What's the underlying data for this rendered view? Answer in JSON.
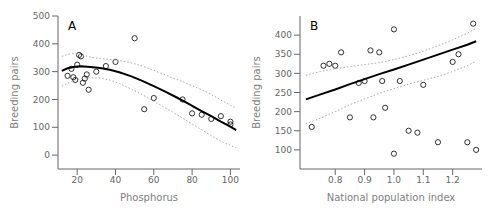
{
  "chart_data": [
    {
      "type": "scatter",
      "annotations": [
        "A"
      ],
      "xlabel": "Phosphorus",
      "ylabel": "Breeding pairs",
      "grid": false,
      "xlim": [
        10,
        105
      ],
      "ylim": [
        -50,
        500
      ],
      "xticks": [
        20,
        40,
        60,
        80,
        100
      ],
      "yticks": [
        0,
        100,
        200,
        300,
        400,
        500
      ],
      "series": [
        {
          "type": "scatter",
          "marker": "open_circle",
          "color": "#000000",
          "x": [
            15,
            17,
            18,
            19,
            20,
            21,
            22,
            23,
            24,
            25,
            26,
            30,
            35,
            40,
            50,
            55,
            60,
            75,
            80,
            85,
            90,
            95,
            100,
            100
          ],
          "values": [
            285,
            310,
            280,
            270,
            325,
            360,
            355,
            260,
            275,
            290,
            235,
            300,
            320,
            335,
            420,
            165,
            205,
            200,
            150,
            145,
            130,
            140,
            110,
            120
          ]
        },
        {
          "type": "line",
          "line_style": "dotted",
          "color": "#aaaaaa",
          "x": [
            12,
            15,
            18,
            22,
            27,
            32,
            37,
            42,
            48,
            54,
            60,
            66,
            72,
            78,
            84,
            90,
            95,
            100,
            103
          ],
          "values": [
            355,
            362,
            365,
            360,
            352,
            347,
            344,
            340,
            332,
            320,
            305,
            288,
            272,
            255,
            238,
            218,
            198,
            180,
            168
          ]
        },
        {
          "type": "line",
          "line_style": "dotted",
          "color": "#aaaaaa",
          "x": [
            12,
            15,
            18,
            22,
            27,
            32,
            37,
            42,
            48,
            54,
            60,
            66,
            72,
            78,
            84,
            90,
            95,
            100,
            103
          ],
          "values": [
            248,
            258,
            268,
            276,
            278,
            277,
            270,
            258,
            238,
            217,
            194,
            170,
            146,
            120,
            95,
            70,
            50,
            35,
            26
          ]
        },
        {
          "type": "line",
          "line_style": "solid",
          "color": "#000000",
          "x": [
            12,
            15,
            18,
            22,
            27,
            32,
            37,
            42,
            48,
            54,
            60,
            66,
            72,
            78,
            84,
            90,
            95,
            100,
            103
          ],
          "values": [
            303,
            312,
            317,
            319,
            317,
            313,
            307,
            298,
            284,
            267,
            248,
            228,
            207,
            185,
            162,
            140,
            120,
            102,
            90
          ]
        }
      ]
    },
    {
      "type": "scatter",
      "annotations": [
        "B"
      ],
      "xlabel": "National population index",
      "ylabel": "Breeding pairs",
      "grid": false,
      "xlim": [
        0.68,
        1.3
      ],
      "ylim": [
        50,
        450
      ],
      "xticks": [
        0.8,
        0.9,
        {
          "value": 1,
          "label": "1.0"
        },
        1.1,
        1.2
      ],
      "yticks": [
        100,
        150,
        200,
        250,
        300,
        350,
        400
      ],
      "series": [
        {
          "type": "scatter",
          "marker": "open_circle",
          "color": "#000000",
          "x": [
            0.72,
            0.76,
            0.78,
            0.8,
            0.82,
            0.85,
            0.88,
            0.9,
            0.92,
            0.93,
            0.95,
            0.96,
            0.97,
            1.0,
            1.0,
            1.02,
            1.05,
            1.08,
            1.1,
            1.15,
            1.2,
            1.22,
            1.25,
            1.27,
            1.28
          ],
          "values": [
            160,
            320,
            325,
            320,
            355,
            185,
            275,
            280,
            360,
            185,
            355,
            280,
            210,
            415,
            90,
            280,
            150,
            145,
            270,
            120,
            330,
            350,
            120,
            430,
            100
          ]
        },
        {
          "type": "line",
          "line_style": "dotted",
          "color": "#aaaaaa",
          "x": [
            0.7,
            0.75,
            0.8,
            0.85,
            0.9,
            0.95,
            1.0,
            1.05,
            1.1,
            1.15,
            1.2,
            1.25,
            1.28
          ],
          "values": [
            295,
            305,
            312,
            318,
            323,
            328,
            336,
            346,
            358,
            372,
            388,
            405,
            418
          ]
        },
        {
          "type": "line",
          "line_style": "dotted",
          "color": "#aaaaaa",
          "x": [
            0.7,
            0.75,
            0.8,
            0.85,
            0.9,
            0.95,
            1.0,
            1.05,
            1.1,
            1.15,
            1.2,
            1.25,
            1.28
          ],
          "values": [
            168,
            183,
            200,
            218,
            233,
            248,
            260,
            272,
            282,
            292,
            305,
            320,
            332
          ]
        },
        {
          "type": "line",
          "line_style": "solid",
          "color": "#000000",
          "x": [
            0.7,
            0.75,
            0.8,
            0.85,
            0.9,
            0.95,
            1.0,
            1.05,
            1.1,
            1.15,
            1.2,
            1.25,
            1.28
          ],
          "values": [
            232,
            245,
            258,
            272,
            285,
            298,
            310,
            323,
            336,
            349,
            362,
            375,
            384
          ]
        }
      ]
    }
  ]
}
